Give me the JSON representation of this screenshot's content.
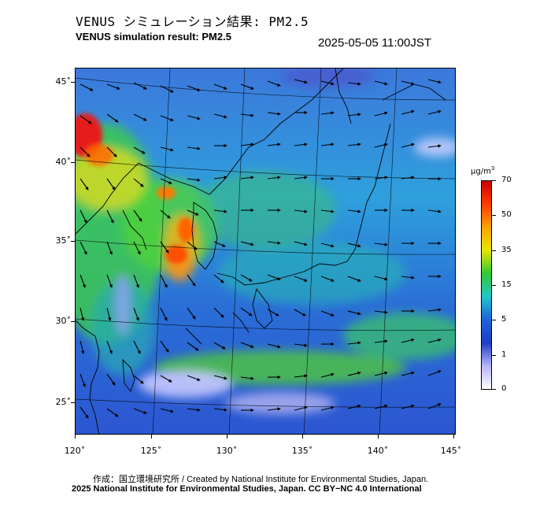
{
  "header": {
    "title_ja": "VENUS シミュレーション結果: PM2.5",
    "title_en": "VENUS simulation result: PM2.5",
    "timestamp": "2025-05-05 11:00JST"
  },
  "map": {
    "lat_labels": [
      "45˚",
      "40˚",
      "35˚",
      "30˚",
      "25˚"
    ],
    "lon_labels": [
      "120˚",
      "125˚",
      "130˚",
      "135˚",
      "140˚",
      "145˚"
    ],
    "variable": "PM2.5",
    "wind_vectors": "shown"
  },
  "colorbar": {
    "unit_base": "μg/m",
    "unit_sup": "3",
    "labels": [
      "70",
      "50",
      "35",
      "15",
      "5",
      "1",
      "0"
    ],
    "colors": [
      "#c80000",
      "#ff3c00",
      "#ffa000",
      "#e6e600",
      "#32c832",
      "#1ec8c8",
      "#1e64dc",
      "#1e3cc8",
      "#b4b4ff",
      "#ffffff"
    ]
  },
  "footer": {
    "credit_1": "作成：国立環境研究所 / Created by National Institute for Environmental Studies, Japan.",
    "credit_2": "2025 National Institute for Environmental Studies, Japan. CC BY−NC 4.0 International"
  }
}
